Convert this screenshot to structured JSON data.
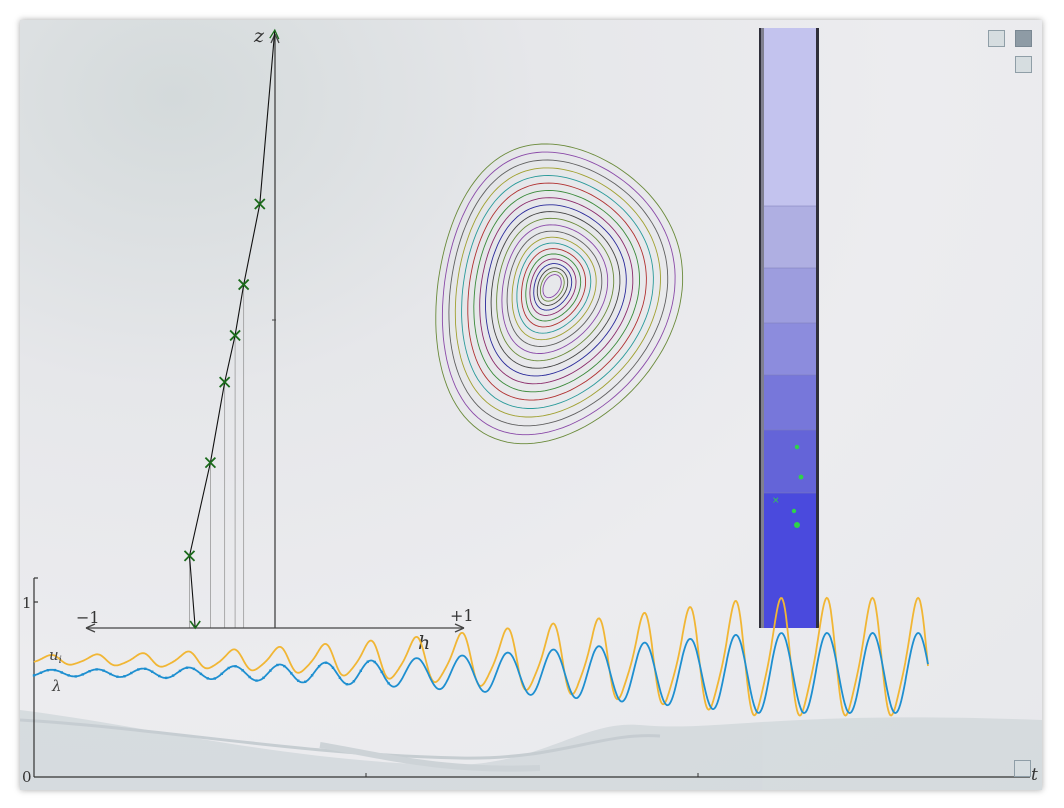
{
  "profile": {
    "z_label": "z",
    "h_label": "h",
    "minus_label": "−1",
    "plus_label": "+1",
    "markers": [
      [
        -0.45,
        0.17
      ],
      [
        -0.34,
        0.39
      ],
      [
        -0.265,
        0.58
      ],
      [
        -0.21,
        0.69
      ],
      [
        -0.165,
        0.81
      ],
      [
        -0.08,
        1.0
      ]
    ],
    "end_marker": [
      -0.42,
      0.0
    ]
  },
  "timeseries": {
    "y_tick_1": "1",
    "y_tick_0": "0",
    "u_label": "u",
    "u_subscript": "i",
    "lambda_label": "λ",
    "t_label": "t"
  },
  "colors": {
    "orange": "#f1b634",
    "blue": "#1e8fd0",
    "marker_green": "#1a6a1a",
    "column_dark": "#4a4add"
  },
  "column_levels": [
    0.6,
    0.55,
    0.48,
    0.42,
    0.35,
    0.25,
    0.15
  ],
  "contour_colors": [
    "#8a4aa8",
    "#6a8a3a",
    "#444",
    "#2a2a9a",
    "#8a2a6a",
    "#3a8a3a",
    "#b03030",
    "#2a9a9a",
    "#a0a030",
    "#606060"
  ],
  "controls": {
    "btn_a": "toggle",
    "btn_b": "toggle-active",
    "btn_c": "toggle",
    "btn_d": "toggle"
  }
}
